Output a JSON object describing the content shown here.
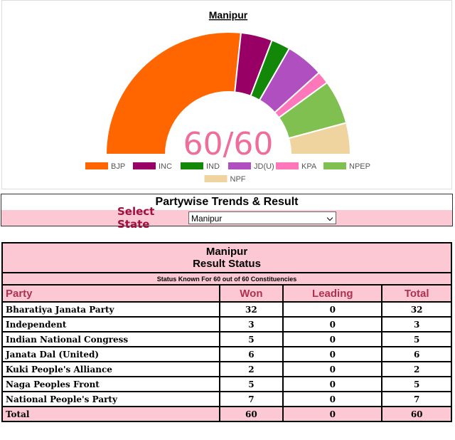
{
  "chart_data": {
    "type": "donut",
    "title": "Manipur",
    "center_label": "60/60",
    "categories": [
      "BJP",
      "INC",
      "IND",
      "JD(U)",
      "KPA",
      "NPEP",
      "NPF"
    ],
    "values": [
      32,
      5,
      3,
      6,
      2,
      7,
      5
    ],
    "colors": [
      "#ff6600",
      "#990066",
      "#138808",
      "#b04fc0",
      "#ff77bb",
      "#80c050",
      "#f0d4a0"
    ],
    "legend": "bottom"
  },
  "form": {
    "title": "Partywise Trends & Result",
    "select_label": "Select State",
    "selected": "Manipur"
  },
  "table": {
    "title": "Manipur",
    "subtitle": "Result Status",
    "note": "Status Known For 60 out of 60 Constituencies",
    "columns": [
      "Party",
      "Won",
      "Leading",
      "Total"
    ],
    "rows": [
      [
        "Bharatiya Janata Party",
        32,
        0,
        32
      ],
      [
        "Independent",
        3,
        0,
        3
      ],
      [
        "Indian National Congress",
        5,
        0,
        5
      ],
      [
        "Janata Dal (United)",
        6,
        0,
        6
      ],
      [
        "Kuki People's Alliance",
        2,
        0,
        2
      ],
      [
        "Naga Peoples Front",
        5,
        0,
        5
      ],
      [
        "National People's Party",
        7,
        0,
        7
      ]
    ],
    "total": [
      "Total",
      60,
      0,
      60
    ]
  }
}
